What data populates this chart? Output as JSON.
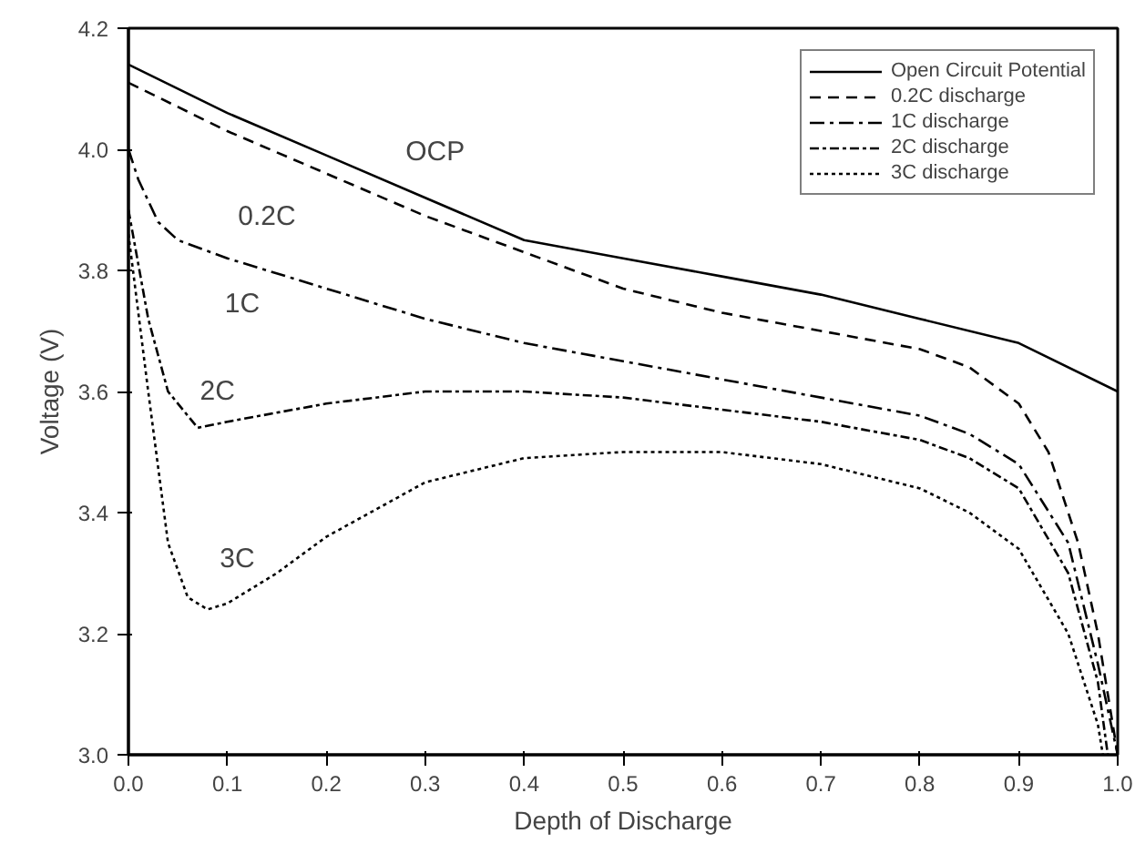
{
  "chart_data": {
    "type": "line",
    "xlabel": "Depth of Discharge",
    "ylabel": "Voltage (V)",
    "xlim": [
      0,
      1.0
    ],
    "ylim": [
      3.0,
      4.2
    ],
    "xticks": [
      {
        "value": 0,
        "label": "0.0"
      },
      0.1,
      0.2,
      0.3,
      0.4,
      0.5,
      0.6,
      0.7,
      0.8,
      0.9,
      {
        "value": 1,
        "label": "1.0"
      }
    ],
    "yticks": [
      {
        "value": 3,
        "label": "3.0"
      },
      3.2,
      3.4,
      3.6,
      3.8,
      {
        "value": 4,
        "label": "4.0"
      },
      4.2
    ],
    "grid": false,
    "legend": "top right",
    "marker": "none",
    "series": [
      {
        "name": "Open Circuit Potential",
        "color": "#000000",
        "line_style": "solid",
        "x": [
          0,
          0.1,
          0.2,
          0.3,
          0.4,
          0.5,
          0.6,
          0.7,
          0.8,
          0.9,
          1.0
        ],
        "values": [
          4.14,
          4.06,
          3.99,
          3.92,
          3.85,
          3.82,
          3.79,
          3.76,
          3.72,
          3.68,
          3.6
        ]
      },
      {
        "name": "0.2C discharge",
        "color": "#000000",
        "line_style": "dashed",
        "x": [
          0,
          0.05,
          0.1,
          0.2,
          0.3,
          0.4,
          0.5,
          0.6,
          0.7,
          0.8,
          0.85,
          0.9,
          0.93,
          0.96,
          0.98,
          1.0
        ],
        "values": [
          4.11,
          4.07,
          4.03,
          3.96,
          3.89,
          3.83,
          3.77,
          3.73,
          3.7,
          3.67,
          3.64,
          3.58,
          3.5,
          3.35,
          3.2,
          3.0
        ]
      },
      {
        "name": "1C discharge",
        "color": "#000000",
        "line_style": "dashdot",
        "x": [
          0,
          0.01,
          0.03,
          0.05,
          0.1,
          0.2,
          0.3,
          0.4,
          0.5,
          0.6,
          0.7,
          0.8,
          0.85,
          0.9,
          0.95,
          0.98,
          1.0
        ],
        "values": [
          4.0,
          3.95,
          3.88,
          3.85,
          3.82,
          3.77,
          3.72,
          3.68,
          3.65,
          3.62,
          3.59,
          3.56,
          3.53,
          3.48,
          3.35,
          3.15,
          3.0
        ]
      },
      {
        "name": "2C discharge",
        "color": "#000000",
        "line_style": "dashdotdot",
        "x": [
          0,
          0.02,
          0.04,
          0.07,
          0.1,
          0.2,
          0.3,
          0.4,
          0.5,
          0.6,
          0.7,
          0.8,
          0.85,
          0.9,
          0.95,
          0.98,
          0.99
        ],
        "values": [
          3.9,
          3.72,
          3.6,
          3.54,
          3.55,
          3.58,
          3.6,
          3.6,
          3.59,
          3.57,
          3.55,
          3.52,
          3.49,
          3.44,
          3.3,
          3.12,
          3.0
        ]
      },
      {
        "name": "3C discharge",
        "color": "#000000",
        "line_style": "dotted",
        "x": [
          0,
          0.02,
          0.04,
          0.06,
          0.08,
          0.1,
          0.15,
          0.2,
          0.3,
          0.4,
          0.5,
          0.6,
          0.7,
          0.8,
          0.85,
          0.9,
          0.95,
          0.98,
          0.985
        ],
        "values": [
          3.86,
          3.6,
          3.35,
          3.26,
          3.24,
          3.25,
          3.3,
          3.36,
          3.45,
          3.49,
          3.5,
          3.5,
          3.48,
          3.44,
          3.4,
          3.34,
          3.2,
          3.05,
          3.0
        ]
      }
    ],
    "annotations": [
      "OCP",
      "0.2C",
      "1C",
      "2C",
      "3C"
    ]
  }
}
